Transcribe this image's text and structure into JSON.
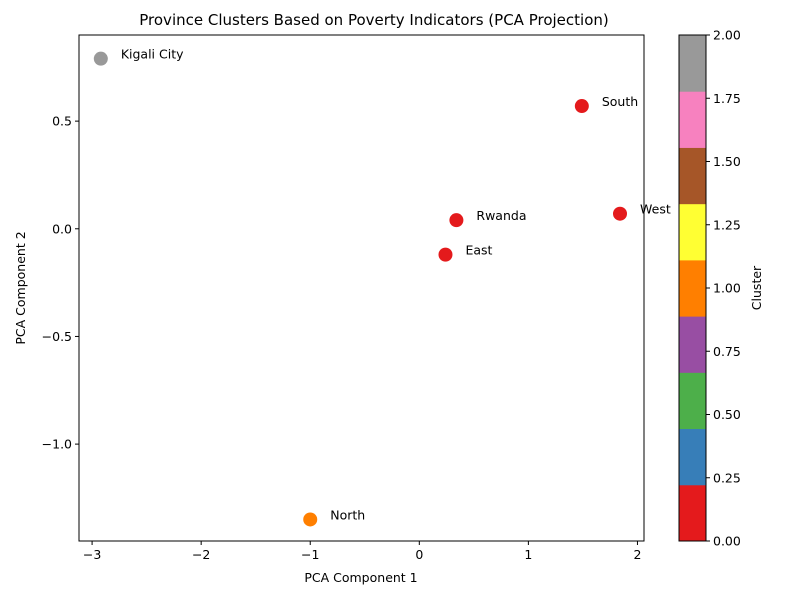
{
  "chart_data": {
    "type": "scatter",
    "title": "Province Clusters Based on Poverty Indicators (PCA Projection)",
    "xlabel": "PCA Component 1",
    "ylabel": "PCA Component 2",
    "xlim": [
      -3.12,
      2.06
    ],
    "ylim": [
      -1.45,
      0.9
    ],
    "xticks": [
      -3,
      -2,
      -1,
      0,
      1,
      2
    ],
    "xtick_labels": [
      "−3",
      "−2",
      "−1",
      "0",
      "1",
      "2"
    ],
    "yticks": [
      -1.0,
      -0.5,
      0.0,
      0.5
    ],
    "ytick_labels": [
      "−1.0",
      "−0.5",
      "0.0",
      "0.5"
    ],
    "grid": false,
    "points": [
      {
        "label": "Kigali City",
        "x": -2.92,
        "y": 0.79,
        "cluster": 2
      },
      {
        "label": "South",
        "x": 1.49,
        "y": 0.57,
        "cluster": 0
      },
      {
        "label": "Rwanda",
        "x": 0.34,
        "y": 0.04,
        "cluster": 0
      },
      {
        "label": "West",
        "x": 1.84,
        "y": 0.07,
        "cluster": 0
      },
      {
        "label": "East",
        "x": 0.24,
        "y": -0.12,
        "cluster": 0
      },
      {
        "label": "North",
        "x": -1.0,
        "y": -1.35,
        "cluster": 1
      }
    ],
    "cluster_colors": {
      "0": "#e41a1c",
      "1": "#ff7f00",
      "2": "#999999"
    },
    "colorbar": {
      "label": "Cluster",
      "range": [
        0,
        2
      ],
      "ticks": [
        0.0,
        0.25,
        0.5,
        0.75,
        1.0,
        1.25,
        1.5,
        1.75,
        2.0
      ],
      "tick_labels": [
        "0.00",
        "0.25",
        "0.50",
        "0.75",
        "1.00",
        "1.25",
        "1.50",
        "1.75",
        "2.00"
      ],
      "colors": [
        "#e41a1c",
        "#377eb8",
        "#4daf4a",
        "#984ea3",
        "#ff7f00",
        "#ffff33",
        "#a65628",
        "#f781bf",
        "#999999"
      ]
    }
  }
}
